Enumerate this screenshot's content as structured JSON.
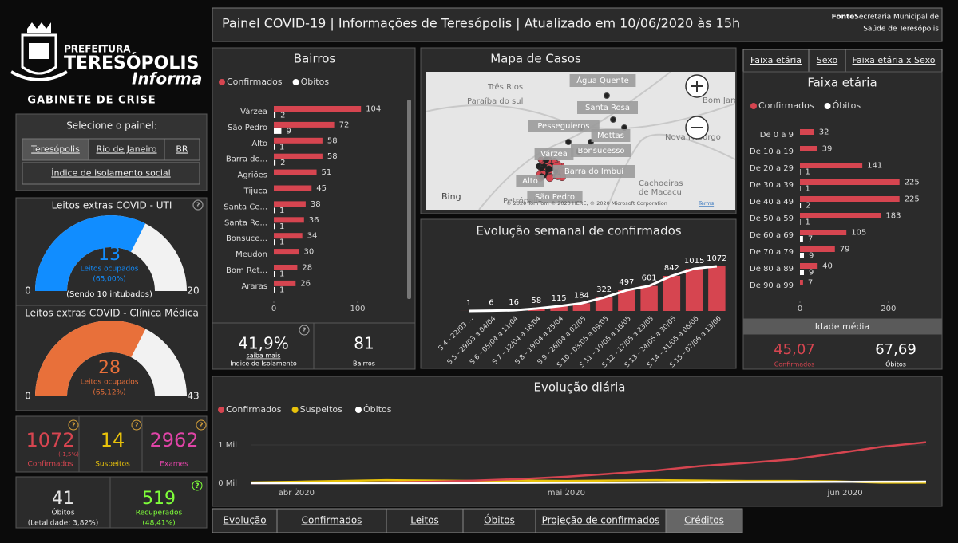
{
  "header": {
    "title": "Painel COVID-19 | Informações de Teresópolis | Atualizado em 10/06/2020 às 15h",
    "source_label": "Fonte:",
    "source": [
      "Secretaria Municipal de",
      "Saúde de Teresópolis"
    ]
  },
  "logo": {
    "line1": "PREFEITURA",
    "line2": "TERESÓPOLIS",
    "line3": "Informa",
    "line4": "GABINETE DE CRISE"
  },
  "help": "?",
  "selector": {
    "title": "Selecione o painel:",
    "buttons": [
      "Teresópolis",
      "Rio de Janeiro",
      "BR",
      "Índice de isolamento social"
    ],
    "active": 0
  },
  "gauges": [
    {
      "title": "Leitos extras COVID - UTI",
      "value": 13,
      "min": 0,
      "max": 20,
      "color": "#118dff",
      "label": "Leitos ocupados",
      "percent": "(65,00%)",
      "note": "(Sendo 10 intubados)"
    },
    {
      "title": "Leitos extras COVID - Clínica Médica",
      "value": 28,
      "min": 0,
      "max": 43,
      "color": "#e8703a",
      "label": "Leitos ocupados",
      "percent": "(65,12%)"
    }
  ],
  "kpis": [
    {
      "value": 1072,
      "label": "Confirmados",
      "change": "(-1,5%)",
      "color": "#d64550"
    },
    {
      "value": 14,
      "label": "Suspeitos",
      "color": "#e8c20b"
    },
    {
      "value": 2962,
      "label": "Exames",
      "color": "#e044a7"
    },
    {
      "value": 41,
      "label": "Óbitos",
      "note": "(Letalidade: 3,82%)",
      "color": "#e6e6e6"
    },
    {
      "value": 519,
      "label": "Recuperados",
      "note": "(48,41%)",
      "color": "#7fff3a"
    }
  ],
  "isolation": {
    "value": "41,9%",
    "link": "saiba mais",
    "label": "Índice de Isolamento"
  },
  "neighborhoods": {
    "value": 81,
    "label": "Bairros"
  },
  "map": {
    "title": "Mapa de Casos",
    "labels": [
      {
        "text": "Três Rios",
        "boxed": false
      },
      {
        "text": "Paraíba do sul",
        "boxed": false
      },
      {
        "text": "Água Quente",
        "boxed": true
      },
      {
        "text": "Santa Rosa",
        "boxed": true
      },
      {
        "text": "Bom Jardim",
        "boxed": false
      },
      {
        "text": "Pesseguieros",
        "boxed": true
      },
      {
        "text": "Mottas",
        "boxed": true
      },
      {
        "text": "Nova Friburgo",
        "boxed": false
      },
      {
        "text": "Bonsucesso",
        "boxed": true
      },
      {
        "text": "Várzea",
        "boxed": true
      },
      {
        "text": "Barra do Imbuí",
        "boxed": true
      },
      {
        "text": "Alto",
        "boxed": true
      },
      {
        "text": "Cachoeiras",
        "boxed": false
      },
      {
        "text": "de Macacu",
        "boxed": false
      },
      {
        "text": "Petrópolis",
        "boxed": false
      },
      {
        "text": "São Pedro",
        "boxed": true
      }
    ],
    "brand": "Bing",
    "copyright": "© 2020 TomTom © 2020 HERE, © 2020 Microsoft Corporation",
    "terms": "Terms"
  },
  "age_tabs": [
    "Faixa etária",
    "Sexo",
    "Faixa etária x Sexo"
  ],
  "age_summary": {
    "title": "Idade média",
    "confirmed": "45,07",
    "confirmed_label": "Confirmados",
    "deaths": "67,69",
    "deaths_label": "Óbitos"
  },
  "bottom_tabs": [
    "Evolução",
    "Confirmados",
    "Leitos",
    "Óbitos",
    "Projeção de confirmados",
    "Créditos"
  ],
  "active_bottom_tab": 5,
  "chart_data": [
    {
      "type": "hbar",
      "title": "Bairros",
      "categories": [
        "Várzea",
        "São Pedro",
        "Alto",
        "Barra do...",
        "Agriões",
        "Tijuca",
        "Santa Ce...",
        "Santa Ro...",
        "Bonsuce...",
        "Meudon",
        "Bom Ret...",
        "Araras"
      ],
      "series": [
        {
          "name": "Confirmados",
          "color": "#d64550",
          "values": [
            104,
            72,
            58,
            58,
            51,
            45,
            38,
            36,
            34,
            30,
            28,
            26
          ]
        },
        {
          "name": "Óbitos",
          "color": "#ffffff",
          "values": [
            2,
            9,
            1,
            2,
            null,
            null,
            1,
            1,
            1,
            null,
            1,
            1
          ]
        }
      ],
      "xlim": [
        0,
        120
      ],
      "xticks": [
        0,
        100
      ]
    },
    {
      "type": "bar_line",
      "title": "Evolução semanal de confirmados",
      "categories": [
        "S 4 - 22/03 ...",
        "S 5 - 29/03 a 04/04",
        "S 6 - 05/04 a 11/04",
        "S 7 - 12/04 a 18/04",
        "S 8 - 19/04 a 25/04",
        "S 9 - 26/04 a 02/05",
        "S 10 - 03/05 a 09/05",
        "S 11 - 10/05 a 16/05",
        "S 12 - 17/05 a 23/05",
        "S 13 - 24/05 a 30/05",
        "S 14 - 31/05 a 06/06",
        "S 15 - 07/06 a 13/06"
      ],
      "values": [
        1,
        6,
        16,
        58,
        115,
        184,
        322,
        497,
        601,
        842,
        1015,
        1072
      ],
      "color": "#d64550",
      "line_color": "#ffffff",
      "ylim": [
        0,
        1100
      ]
    },
    {
      "type": "hbar",
      "title": "Faixa etária",
      "categories": [
        "De 0 a 9",
        "De 10 a 19",
        "De 20 a 29",
        "De 30 a 39",
        "De 40 a 49",
        "De 50 a 59",
        "De 60 a 69",
        "De 70 a 79",
        "De 80 a 89",
        "De 90 a 99"
      ],
      "series": [
        {
          "name": "Confirmados",
          "color": "#d64550",
          "values": [
            32,
            39,
            141,
            225,
            225,
            183,
            105,
            79,
            40,
            7
          ]
        },
        {
          "name": "Óbitos",
          "color": "#ffffff",
          "values": [
            null,
            null,
            1,
            1,
            2,
            1,
            7,
            9,
            9,
            null
          ]
        }
      ],
      "xlim": [
        0,
        240
      ],
      "xticks": [
        0,
        200
      ]
    },
    {
      "type": "line",
      "title": "Evolução diária",
      "x": [
        0,
        5,
        10,
        15,
        20,
        25,
        30,
        35,
        40,
        45,
        50,
        55,
        60,
        65,
        70,
        75
      ],
      "series": [
        {
          "name": "Confirmados",
          "color": "#d64550",
          "values": [
            1,
            5,
            10,
            20,
            40,
            70,
            110,
            170,
            250,
            330,
            450,
            530,
            620,
            780,
            950,
            1072
          ]
        },
        {
          "name": "Suspeitos",
          "color": "#e8c20b",
          "values": [
            20,
            40,
            60,
            80,
            70,
            60,
            70,
            60,
            70,
            80,
            70,
            60,
            60,
            50,
            14,
            14
          ]
        },
        {
          "name": "Óbitos",
          "color": "#ffffff",
          "values": [
            0,
            0,
            1,
            2,
            3,
            5,
            8,
            12,
            15,
            20,
            24,
            28,
            32,
            36,
            39,
            41
          ]
        }
      ],
      "xlim": [
        0,
        75
      ],
      "xticks": [
        {
          "value": 5,
          "label": "abr 2020"
        },
        {
          "value": 35,
          "label": "mai 2020"
        },
        {
          "value": 66,
          "label": "jun 2020"
        }
      ],
      "ylim": [
        -125,
        1480
      ],
      "yticks": [
        {
          "value": 0,
          "label": "0 Mil"
        },
        {
          "value": 1000,
          "label": "1 Mil"
        }
      ]
    }
  ]
}
